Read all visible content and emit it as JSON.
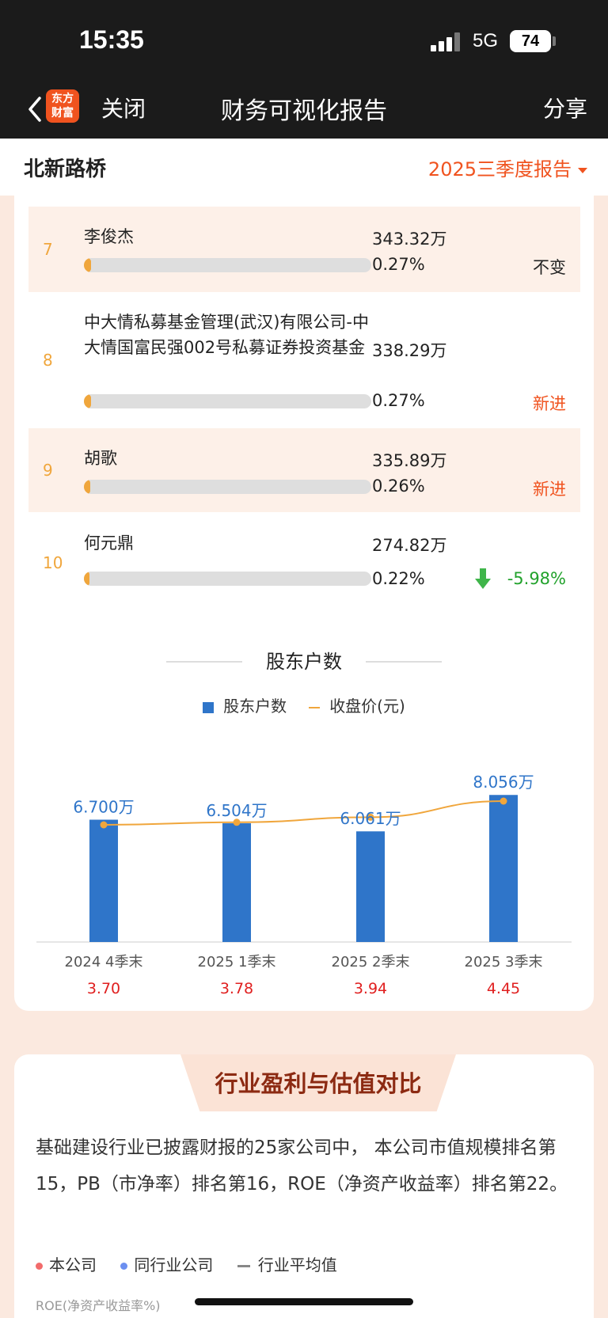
{
  "status_bar": {
    "time": "15:35",
    "network": "5G",
    "battery": "74"
  },
  "nav": {
    "logo_line1": "东方",
    "logo_line2": "财富",
    "close_label": "关闭",
    "title": "财务可视化报告",
    "share_label": "分享"
  },
  "subheader": {
    "company": "北新路桥",
    "report_period": "2025三季度报告"
  },
  "holders": [
    {
      "rank": "7",
      "name": "李俊杰",
      "amount": "343.32万",
      "pct": "0.27%",
      "pct_value": 0.27,
      "change": "不变",
      "change_type": "same"
    },
    {
      "rank": "8",
      "name": "中大情私募基金管理(武汉)有限公司-中大情国富民强002号私募证券投资基金",
      "amount": "338.29万",
      "pct": "0.27%",
      "pct_value": 0.27,
      "change": "新进",
      "change_type": "new"
    },
    {
      "rank": "9",
      "name": "胡歌",
      "amount": "335.89万",
      "pct": "0.26%",
      "pct_value": 0.26,
      "change": "新进",
      "change_type": "new"
    },
    {
      "rank": "10",
      "name": "何元鼎",
      "amount": "274.82万",
      "pct": "0.22%",
      "pct_value": 0.22,
      "change": "-5.98%",
      "change_type": "down"
    }
  ],
  "shareholder_section": {
    "title": "股东户数",
    "legend_bar": "股东户数",
    "legend_line": "收盘价(元)"
  },
  "chart_data": {
    "type": "bar",
    "categories": [
      "2024 4季末",
      "2025 1季末",
      "2025 2季末",
      "2025 3季末"
    ],
    "series": [
      {
        "name": "股东户数",
        "type": "bar",
        "values": [
          6.7,
          6.504,
          6.061,
          8.056
        ],
        "labels": [
          "6.700万",
          "6.504万",
          "6.061万",
          "8.056万"
        ],
        "color": "#2f75c9"
      },
      {
        "name": "收盘价(元)",
        "type": "line",
        "values": [
          3.7,
          3.78,
          3.94,
          4.45
        ],
        "labels": [
          "3.70",
          "3.78",
          "3.94",
          "4.45"
        ],
        "color": "#f0a63c"
      }
    ],
    "bar_ylim": [
      0,
      8.5
    ],
    "line_ylim": [
      0,
      4.9
    ]
  },
  "industry": {
    "title": "行业盈利与估值对比",
    "summary": "基础建设行业已披露财报的25家公司中， 本公司市值规模排名第15，PB（市净率）排名第16，ROE（净资产收益率）排名第22。",
    "legend_self": "本公司",
    "legend_peer": "同行业公司",
    "legend_avg": "行业平均值",
    "metric_label": "ROE(净资产收益率%)"
  },
  "colors": {
    "accent": "#f0531f",
    "bar": "#2f75c9",
    "line": "#f0a63c",
    "price_text": "#e02020",
    "self_dot": "#f26b6b",
    "peer_dot": "#6c8ff0"
  }
}
